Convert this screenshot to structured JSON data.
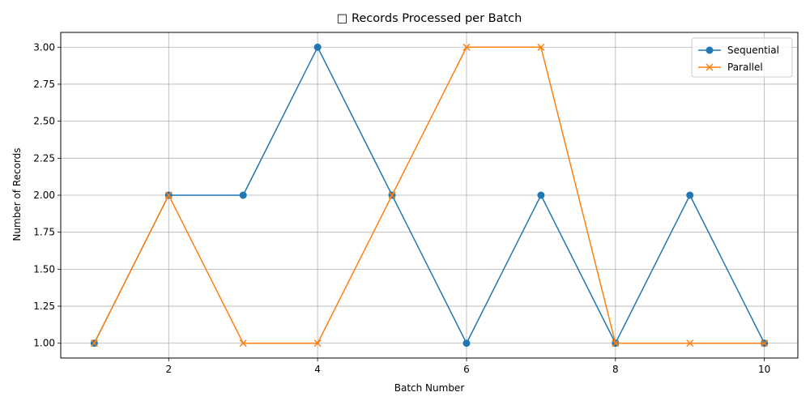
{
  "chart_data": {
    "type": "line",
    "title": "□ Records Processed per Batch",
    "xlabel": "Batch Number",
    "ylabel": "Number of Records",
    "x": [
      1,
      2,
      3,
      4,
      5,
      6,
      7,
      8,
      9,
      10
    ],
    "xlim": [
      0.55,
      10.45
    ],
    "ylim": [
      0.9,
      3.1
    ],
    "xticks": [
      2,
      4,
      6,
      8,
      10
    ],
    "xtick_labels": [
      "2",
      "4",
      "6",
      "8",
      "10"
    ],
    "yticks": [
      1.0,
      1.25,
      1.5,
      1.75,
      2.0,
      2.25,
      2.5,
      2.75,
      3.0
    ],
    "ytick_labels": [
      "1.00",
      "1.25",
      "1.50",
      "1.75",
      "2.00",
      "2.25",
      "2.50",
      "2.75",
      "3.00"
    ],
    "grid": true,
    "legend_position": "top-right",
    "series": [
      {
        "name": "Sequential",
        "values": [
          1,
          2,
          2,
          3,
          2,
          1,
          2,
          1,
          2,
          1
        ],
        "color": "#1f77b4",
        "marker": "circle"
      },
      {
        "name": "Parallel",
        "values": [
          1,
          2,
          1,
          1,
          2,
          3,
          3,
          1,
          1,
          1
        ],
        "color": "#ff7f0e",
        "marker": "x"
      }
    ]
  }
}
